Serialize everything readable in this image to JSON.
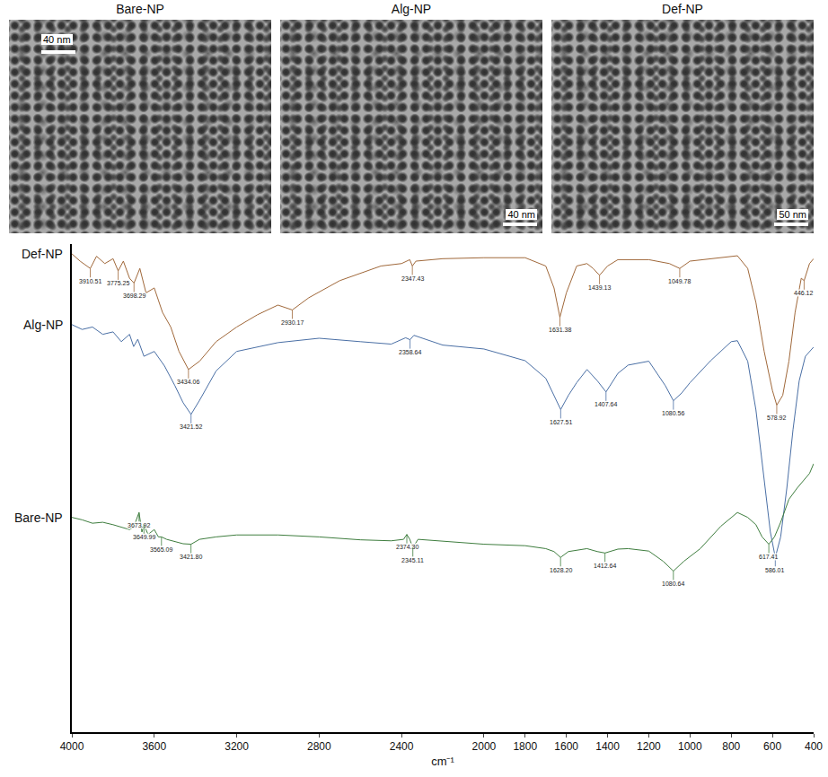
{
  "panels": [
    {
      "title": "Bare-NP",
      "scale_bar": "40 nm"
    },
    {
      "title": "Alg-NP",
      "scale_bar": "40 nm"
    },
    {
      "title": "Def-NP",
      "scale_bar": "50 nm"
    }
  ],
  "chart_data": {
    "type": "line",
    "x_label": "cm⁻¹",
    "xlim": [
      4000,
      400
    ],
    "xticks": [
      4000,
      3600,
      3200,
      2800,
      2400,
      2000,
      1800,
      1600,
      1400,
      1200,
      1000,
      800,
      600,
      400
    ],
    "ylim": [
      0,
      100
    ],
    "tick_labels": "x",
    "grid": false,
    "series": [
      {
        "name": "Def-NP",
        "color": "#a0683a",
        "x": [
          4000,
          3960,
          3910.51,
          3880,
          3840,
          3800,
          3775.25,
          3750,
          3720,
          3698.29,
          3670,
          3640,
          3600,
          3560,
          3520,
          3480,
          3434.06,
          3380,
          3300,
          3200,
          3100,
          3000,
          2930.17,
          2850,
          2700,
          2500,
          2400,
          2360,
          2347.43,
          2330,
          2200,
          2000,
          1800,
          1700,
          1660,
          1631.38,
          1600,
          1550,
          1500,
          1470,
          1439.13,
          1400,
          1350,
          1200,
          1100,
          1049.78,
          1000,
          900,
          770,
          720,
          680,
          640,
          600,
          578.92,
          550,
          520,
          490,
          460,
          446.12,
          420,
          400
        ],
        "values": [
          98,
          96.5,
          95,
          97.5,
          96,
          97,
          94.5,
          96.5,
          93,
          92,
          95,
          90,
          91,
          86,
          83,
          78,
          74.3,
          76,
          80,
          83,
          85.5,
          87.5,
          86.5,
          89,
          92.5,
          95.5,
          96,
          96.8,
          95.5,
          96.5,
          97,
          97.2,
          97.2,
          95.5,
          91,
          85,
          90,
          95.5,
          96,
          95,
          93.6,
          95.5,
          96.8,
          96.8,
          96,
          95,
          96.5,
          97,
          97.6,
          95,
          88,
          78,
          70,
          67,
          69,
          76,
          86,
          93,
          92.5,
          96,
          97
        ],
        "peaks": [
          {
            "x": 3910.51,
            "y": 95,
            "label": "3910.51"
          },
          {
            "x": 3775.25,
            "y": 94.5,
            "label": "3775.25"
          },
          {
            "x": 3698.29,
            "y": 92,
            "label": "3698.29"
          },
          {
            "x": 3434.06,
            "y": 74.3,
            "label": "3434.06"
          },
          {
            "x": 2930.17,
            "y": 86.5,
            "label": "2930.17"
          },
          {
            "x": 2347.43,
            "y": 95.5,
            "label": "2347.43"
          },
          {
            "x": 1631.38,
            "y": 85,
            "label": "1631.38"
          },
          {
            "x": 1439.13,
            "y": 93.6,
            "label": "1439.13"
          },
          {
            "x": 1049.78,
            "y": 95,
            "label": "1049.78"
          },
          {
            "x": 578.92,
            "y": 67,
            "label": "578.92"
          },
          {
            "x": 446.12,
            "y": 92.5,
            "label": "446.12"
          }
        ]
      },
      {
        "name": "Alg-NP",
        "color": "#4a6fa5",
        "x": [
          4000,
          3950,
          3900,
          3850,
          3800,
          3760,
          3720,
          3700,
          3680,
          3650,
          3600,
          3550,
          3500,
          3460,
          3421.52,
          3380,
          3300,
          3200,
          3000,
          2800,
          2600,
          2450,
          2380,
          2358.64,
          2340,
          2200,
          2000,
          1800,
          1700,
          1660,
          1627.51,
          1590,
          1550,
          1500,
          1450,
          1407.64,
          1350,
          1300,
          1200,
          1120,
          1080.56,
          1040,
          1000,
          900,
          800,
          770,
          720,
          680,
          640,
          610,
          586.01,
          560,
          530,
          500,
          470,
          440,
          400
        ],
        "values": [
          83.5,
          82.5,
          83,
          81.5,
          82,
          80,
          81.5,
          79,
          80.5,
          77,
          78,
          75,
          71,
          67.5,
          65.1,
          68,
          74,
          78,
          79.8,
          80.7,
          80,
          79.5,
          80.8,
          80.4,
          81.3,
          79.3,
          78.5,
          76.1,
          72.5,
          69,
          66.1,
          69,
          71.6,
          74.3,
          72,
          69.7,
          73.5,
          75.2,
          76,
          71,
          67.9,
          69.5,
          71.6,
          76.1,
          80,
          80.2,
          76,
          66,
          52,
          41,
          35.8,
          40,
          50,
          62,
          72,
          77,
          78.9
        ],
        "peaks": [
          {
            "x": 3421.52,
            "y": 65.1,
            "label": "3421.52"
          },
          {
            "x": 2358.64,
            "y": 80.4,
            "label": "2358.64"
          },
          {
            "x": 1627.51,
            "y": 66.1,
            "label": "1627.51"
          },
          {
            "x": 1407.64,
            "y": 69.7,
            "label": "1407.64"
          },
          {
            "x": 1080.56,
            "y": 67.9,
            "label": "1080.56"
          },
          {
            "x": 586.01,
            "y": 35.8,
            "label": "586.01"
          }
        ]
      },
      {
        "name": "Bare-NP",
        "color": "#3e7d3e",
        "x": [
          4000,
          3950,
          3900,
          3850,
          3800,
          3760,
          3720,
          3700,
          3673.92,
          3660,
          3649.99,
          3630,
          3600,
          3580,
          3565.09,
          3540,
          3500,
          3460,
          3421.8,
          3380,
          3300,
          3200,
          3000,
          2800,
          2600,
          2450,
          2390,
          2374.3,
          2360,
          2345.11,
          2320,
          2200,
          2000,
          1800,
          1700,
          1660,
          1628.2,
          1590,
          1500,
          1450,
          1412.64,
          1350,
          1300,
          1200,
          1130,
          1080.64,
          1030,
          950,
          850,
          770,
          720,
          680,
          650,
          617.41,
          590,
          560,
          520,
          480,
          450,
          420,
          400
        ],
        "values": [
          44,
          43.5,
          42.8,
          43,
          42.5,
          42,
          41.5,
          42,
          45,
          41,
          42.5,
          40.5,
          41.5,
          40,
          40,
          39.5,
          39,
          38.6,
          38.5,
          39.5,
          40,
          40.4,
          40.4,
          40,
          39.4,
          39.2,
          39.5,
          40.5,
          39.5,
          37.8,
          39.5,
          39.1,
          38.5,
          38.2,
          37.6,
          37,
          35.8,
          37,
          37.6,
          37,
          36.7,
          37.5,
          37.6,
          37.1,
          35,
          33,
          35,
          37.6,
          42.2,
          45,
          44,
          42.5,
          40,
          38.5,
          40,
          43,
          47.7,
          50,
          51.4,
          53,
          55
        ],
        "peaks": [
          {
            "x": 3673.92,
            "y": 45,
            "label": "3673.92"
          },
          {
            "x": 3649.99,
            "y": 42.5,
            "label": "3649.99"
          },
          {
            "x": 3565.09,
            "y": 40,
            "label": "3565.09"
          },
          {
            "x": 3421.8,
            "y": 38.5,
            "label": "3421.80"
          },
          {
            "x": 2374.3,
            "y": 40.5,
            "label": "2374.30"
          },
          {
            "x": 2345.11,
            "y": 37.8,
            "label": "2345.11"
          },
          {
            "x": 1628.2,
            "y": 35.8,
            "label": "1628.20"
          },
          {
            "x": 1412.64,
            "y": 36.7,
            "label": "1412.64"
          },
          {
            "x": 1080.64,
            "y": 33,
            "label": "1080.64"
          },
          {
            "x": 617.41,
            "y": 38.5,
            "label": "617.41"
          }
        ]
      }
    ]
  }
}
